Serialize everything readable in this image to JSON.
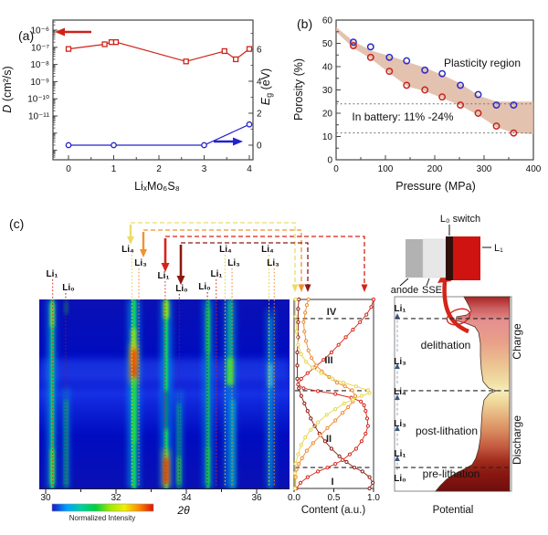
{
  "panel_a": {
    "label": "(a)",
    "xlabel": "LiₓMo₆S₈",
    "ylabel_var": "D",
    "ylabel_unit": " (cm²/s)",
    "y2label_var": "E",
    "y2label_sub": "g",
    "y2label_unit": " (eV)"
  },
  "panel_b": {
    "label": "(b)",
    "xlabel": "Pressure (MPa)",
    "ylabel": "Porosity (%)",
    "plasticity_label": "Plasticity region",
    "battery_label": "In battery: 11% -24%"
  },
  "panel_c": {
    "label": "(c)",
    "xrd": {
      "xlabel": "2θ",
      "colorbar_label": "Normalized Intensity"
    },
    "content": {
      "xlabel": "Content (a.u.)",
      "regions": [
        "I",
        "II",
        "III",
        "IV"
      ]
    },
    "potential": {
      "xlabel": "Potential",
      "stage_pre": "pre-lithation",
      "stage_post": "post-lithation",
      "stage_de": "delithation",
      "charge": "Charge",
      "discharge": "Discharge",
      "sequence": [
        "Li₀",
        "Li₁",
        "Li₃",
        "Li₄",
        "Li₃",
        "Li₁"
      ]
    },
    "battery": {
      "anode": "anode",
      "sse": "SSE",
      "switch_label": "L₀ switch",
      "cathode_label": "L₁"
    }
  },
  "chart_data": [
    {
      "id": "panel_a",
      "type": "scatter",
      "xlabel": "LiₓMo₆S₈",
      "x_range": [
        -0.35,
        4.35
      ],
      "x_ticks": [
        "0",
        "1",
        "2",
        "3",
        "4"
      ],
      "y_left": {
        "label": "D (cm²/s)",
        "scale": "log",
        "ticks": [
          "10⁻⁶",
          "10⁻⁷",
          "10⁻⁸",
          "10⁻⁹",
          "10⁻¹⁰",
          "10⁻¹¹"
        ]
      },
      "y_right": {
        "label": "Eg (eV)",
        "ticks": [
          "0",
          "2",
          "4",
          "6"
        ]
      },
      "series": [
        {
          "name": "diffusivity-D",
          "axis": "left",
          "color": "#cf2318",
          "marker": "square",
          "x": [
            0,
            0.8,
            0.95,
            1.05,
            2.6,
            3.45,
            3.7,
            4.0
          ],
          "y": [
            8e-08,
            1.5e-07,
            2e-07,
            2e-07,
            1.5e-08,
            6e-08,
            2e-08,
            8e-08
          ]
        },
        {
          "name": "bandgap-Eg",
          "axis": "right",
          "color": "#2323cc",
          "marker": "circle",
          "x": [
            0,
            1,
            3,
            4
          ],
          "y": [
            0,
            0,
            0,
            1.3
          ]
        }
      ]
    },
    {
      "id": "panel_b",
      "type": "scatter",
      "xlabel": "Pressure (MPa)",
      "ylabel": "Porosity (%)",
      "x_range": [
        0,
        400
      ],
      "y_range": [
        0,
        60
      ],
      "x_ticks": [
        "0",
        "100",
        "200",
        "300",
        "400"
      ],
      "y_ticks": [
        "0",
        "10",
        "20",
        "30",
        "40",
        "50",
        "60"
      ],
      "ref_lines_y": [
        24,
        11.5
      ],
      "series": [
        {
          "name": "porosity-upper-blue",
          "color": "#2a2ac8",
          "marker": "circle",
          "x": [
            35,
            70,
            108,
            143,
            180,
            215,
            252,
            288,
            325,
            360
          ],
          "y": [
            50.5,
            48.5,
            44,
            42.5,
            38.5,
            37,
            32,
            28,
            23.5,
            23.5
          ]
        },
        {
          "name": "porosity-lower-red",
          "color": "#c62420",
          "marker": "circle",
          "x": [
            35,
            70,
            108,
            143,
            180,
            215,
            252,
            288,
            325,
            360
          ],
          "y": [
            49,
            44,
            38,
            32,
            30,
            27,
            23.5,
            20,
            14.5,
            11.5
          ]
        }
      ],
      "band": {
        "name": "plasticity-region",
        "color": "#ddb39c",
        "upper_x": [
          0,
          35,
          70,
          110,
          145,
          180,
          215,
          250,
          290,
          325,
          400
        ],
        "upper_y": [
          57,
          51,
          47,
          44.5,
          42,
          39.5,
          36.5,
          33,
          27.5,
          25,
          25
        ],
        "lower_x": [
          0,
          35,
          70,
          110,
          145,
          180,
          215,
          250,
          290,
          325,
          360,
          400
        ],
        "lower_y": [
          55,
          48,
          43.5,
          37,
          31.5,
          29.5,
          26.5,
          23.5,
          19,
          14,
          11.5,
          11
        ]
      }
    },
    {
      "id": "panel_c_xrd_map",
      "type": "heatmap",
      "xlabel": "2θ",
      "x_range": [
        29.8,
        37.1
      ],
      "x_ticks": [
        30,
        31,
        32,
        33,
        34,
        35,
        36
      ],
      "x_tick_labels": [
        "30",
        "",
        "32",
        "",
        "34",
        "",
        "36"
      ],
      "colorbar": {
        "label": "Normalized Intensity",
        "colors": [
          "#1616c8",
          "#00a0ff",
          "#00d0a0",
          "#00d040",
          "#a0e800",
          "#f0f000",
          "#ff8800",
          "#e01000"
        ]
      },
      "peaks": [
        {
          "two_theta": 30.2,
          "phase": "Li₁",
          "color": "#d42518"
        },
        {
          "two_theta": 30.57,
          "phase": "Li₀",
          "color": "#8b1a10"
        },
        {
          "two_theta": 32.45,
          "phase": "Li₄",
          "color": "#ddcf3a"
        },
        {
          "two_theta": 32.65,
          "phase": "Li₃",
          "color": "#ef8828"
        },
        {
          "two_theta": 33.4,
          "phase": "Li₁",
          "color": "#d42518"
        },
        {
          "two_theta": 33.8,
          "phase": "Li₀",
          "color": "#8b1a10"
        },
        {
          "two_theta": 34.6,
          "phase": "Li₀",
          "color": "#8b1a10"
        },
        {
          "two_theta": 34.85,
          "phase": "Li₁",
          "color": "#d42518"
        },
        {
          "two_theta": 35.1,
          "phase": "Li₄",
          "color": "#ddcf3a"
        },
        {
          "two_theta": 35.3,
          "phase": "Li₃",
          "color": "#ef8828"
        },
        {
          "two_theta": 36.35,
          "phase": "Li₄",
          "color": "#ddcf3a"
        },
        {
          "two_theta": 36.5,
          "phase": "Li₃",
          "color": "#ef8828"
        }
      ]
    },
    {
      "id": "panel_c_phase_content",
      "type": "line",
      "xlabel": "Content (a.u.)",
      "x_range": [
        0,
        1
      ],
      "x_ticks": [
        "0.0",
        "0.5",
        "1.0"
      ],
      "regions": [
        "I",
        "II",
        "III",
        "IV"
      ],
      "region_boundaries_t": [
        0.111,
        0.517,
        0.899
      ],
      "series": [
        {
          "name": "Li₀",
          "color": "#8b1a10",
          "points": [
            [
              0,
              0.95
            ],
            [
              0.03,
              0.99
            ],
            [
              0.06,
              0.95
            ],
            [
              0.09,
              0.86
            ],
            [
              0.11,
              0.76
            ],
            [
              0.14,
              0.66
            ],
            [
              0.17,
              0.57
            ],
            [
              0.21,
              0.47
            ],
            [
              0.25,
              0.39
            ],
            [
              0.29,
              0.32
            ],
            [
              0.33,
              0.26
            ],
            [
              0.37,
              0.21
            ],
            [
              0.41,
              0.17
            ],
            [
              0.45,
              0.13
            ],
            [
              0.49,
              0.09
            ],
            [
              0.53,
              0.06
            ],
            [
              0.58,
              0.04
            ],
            [
              0.65,
              0.04
            ],
            [
              0.72,
              0.04
            ],
            [
              0.8,
              0.05
            ],
            [
              0.88,
              0.05
            ],
            [
              0.95,
              0.05
            ],
            [
              1,
              0.06
            ]
          ]
        },
        {
          "name": "Li₁",
          "color": "#d42518",
          "points": [
            [
              0,
              0.03
            ],
            [
              0.03,
              0.08
            ],
            [
              0.06,
              0.17
            ],
            [
              0.09,
              0.3
            ],
            [
              0.11,
              0.42
            ],
            [
              0.13,
              0.52
            ],
            [
              0.15,
              0.61
            ],
            [
              0.18,
              0.7
            ],
            [
              0.21,
              0.78
            ],
            [
              0.25,
              0.85
            ],
            [
              0.29,
              0.9
            ],
            [
              0.33,
              0.93
            ],
            [
              0.37,
              0.92
            ],
            [
              0.41,
              0.9
            ],
            [
              0.44,
              0.88
            ],
            [
              0.46,
              0.84
            ],
            [
              0.48,
              0.72
            ],
            [
              0.5,
              0.52
            ],
            [
              0.515,
              0.3
            ],
            [
              0.53,
              0.12
            ],
            [
              0.55,
              0.05
            ],
            [
              0.58,
              0.09
            ],
            [
              0.61,
              0.17
            ],
            [
              0.64,
              0.26
            ],
            [
              0.68,
              0.37
            ],
            [
              0.72,
              0.47
            ],
            [
              0.76,
              0.56
            ],
            [
              0.8,
              0.65
            ],
            [
              0.84,
              0.74
            ],
            [
              0.88,
              0.83
            ],
            [
              0.92,
              0.91
            ],
            [
              0.96,
              0.97
            ],
            [
              1,
              1.0
            ]
          ]
        },
        {
          "name": "Li₃",
          "color": "#ef8828",
          "points": [
            [
              0,
              0.02
            ],
            [
              0.06,
              0.02
            ],
            [
              0.1,
              0.03
            ],
            [
              0.13,
              0.06
            ],
            [
              0.16,
              0.1
            ],
            [
              0.2,
              0.16
            ],
            [
              0.24,
              0.24
            ],
            [
              0.28,
              0.33
            ],
            [
              0.32,
              0.42
            ],
            [
              0.36,
              0.52
            ],
            [
              0.4,
              0.61
            ],
            [
              0.43,
              0.68
            ],
            [
              0.46,
              0.74
            ],
            [
              0.49,
              0.77
            ],
            [
              0.52,
              0.73
            ],
            [
              0.54,
              0.64
            ],
            [
              0.56,
              0.54
            ],
            [
              0.59,
              0.44
            ],
            [
              0.62,
              0.35
            ],
            [
              0.65,
              0.28
            ],
            [
              0.69,
              0.22
            ],
            [
              0.73,
              0.18
            ],
            [
              0.78,
              0.15
            ],
            [
              0.83,
              0.13
            ],
            [
              0.88,
              0.12
            ],
            [
              0.93,
              0.14
            ],
            [
              0.97,
              0.16
            ],
            [
              1,
              0.18
            ]
          ]
        },
        {
          "name": "Li₄",
          "color": "#e3d64a",
          "points": [
            [
              0,
              0.01
            ],
            [
              0.08,
              0.01
            ],
            [
              0.13,
              0.02
            ],
            [
              0.18,
              0.05
            ],
            [
              0.23,
              0.09
            ],
            [
              0.27,
              0.14
            ],
            [
              0.31,
              0.21
            ],
            [
              0.35,
              0.3
            ],
            [
              0.39,
              0.41
            ],
            [
              0.42,
              0.52
            ],
            [
              0.45,
              0.63
            ],
            [
              0.47,
              0.74
            ],
            [
              0.49,
              0.85
            ],
            [
              0.505,
              0.95
            ],
            [
              0.52,
              0.93
            ],
            [
              0.54,
              0.78
            ],
            [
              0.56,
              0.62
            ],
            [
              0.58,
              0.48
            ],
            [
              0.61,
              0.34
            ],
            [
              0.64,
              0.23
            ],
            [
              0.67,
              0.15
            ],
            [
              0.71,
              0.09
            ],
            [
              0.76,
              0.05
            ],
            [
              0.83,
              0.03
            ],
            [
              0.91,
              0.02
            ],
            [
              1,
              0.02
            ]
          ]
        }
      ]
    },
    {
      "id": "panel_c_potential",
      "type": "area",
      "xlabel": "Potential",
      "stages": [
        {
          "name": "pre-lithation",
          "t_range": [
            0,
            0.111
          ]
        },
        {
          "name": "post-lithation",
          "t_range": [
            0.111,
            0.517
          ]
        },
        {
          "name": "delithation",
          "t_range": [
            0.517,
            0.899
          ]
        }
      ],
      "half_cycles": [
        {
          "name": "Discharge",
          "t_range": [
            0,
            0.517
          ]
        },
        {
          "name": "Charge",
          "t_range": [
            0.517,
            1
          ]
        }
      ],
      "phase_sequence": [
        "Li₀",
        "Li₁",
        "Li₃",
        "Li₄",
        "Li₃",
        "Li₁"
      ]
    }
  ]
}
